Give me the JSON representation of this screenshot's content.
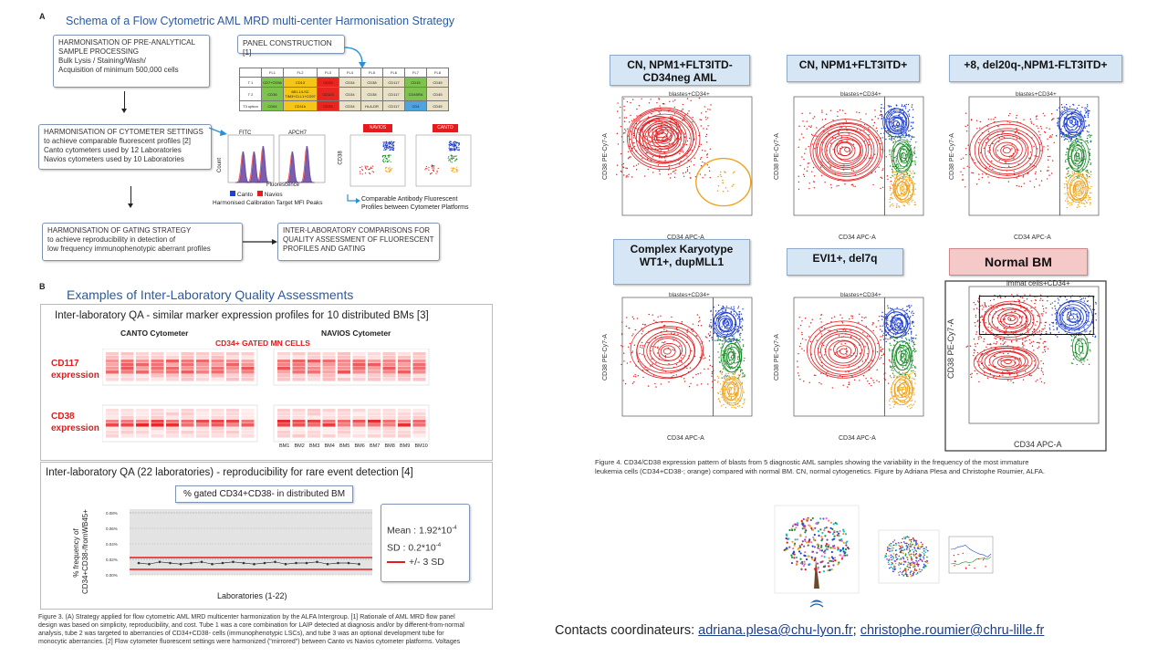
{
  "left": {
    "section_a_label": "A",
    "section_a_title": "Schema of a  Flow Cytometric AML MRD multi-center Harmonisation Strategy",
    "box1_lines": [
      "HARMONISATION OF PRE-ANALYTICAL",
      "SAMPLE  PROCESSING",
      "Bulk Lysis / Staining/Wash/",
      "Acquisition of minimum 500,000 cells"
    ],
    "panel_box": "PANEL CONSTRUCTION [1]",
    "table_header": [
      "",
      "FL1",
      "FL2",
      "FL3",
      "FL4",
      "FL5",
      "FL6",
      "FL7",
      "FL8"
    ],
    "table_rows": [
      [
        "T 1",
        "CD7+CD56",
        "CD13",
        "CD33",
        "CD34",
        "CD38",
        "CD117",
        "CD15",
        "CD45"
      ],
      [
        "T 2",
        "CD36",
        "6B1.1/LSC TIM3+CLL1+CD97",
        "CD123",
        "CD34",
        "CD38",
        "CD117",
        "CD45RA",
        "CD45"
      ],
      [
        "T3 option",
        "CD64",
        "CD11b",
        "CD33",
        "CD34",
        "HLA-DR",
        "CD117",
        "CD4",
        "CD45"
      ]
    ],
    "table_colors": [
      [
        "#fff",
        "#7fc34f",
        "#f5c518",
        "#e8251f",
        "#e8e1c8",
        "#e8e1c8",
        "#e8e1c8",
        "#7fc34f",
        "#e8e1c8"
      ],
      [
        "#fff",
        "#7fc34f",
        "#f5c518",
        "#e8251f",
        "#e8e1c8",
        "#e8e1c8",
        "#e8e1c8",
        "#7fc34f",
        "#e8e1c8"
      ],
      [
        "#fff",
        "#7fc34f",
        "#f5c518",
        "#e8251f",
        "#e8e1c8",
        "#e8e1c8",
        "#e8e1c8",
        "#4fa4e0",
        "#e8e1c8"
      ]
    ],
    "box2_lines": [
      "HARMONISATION OF CYTOMETER SETTINGS",
      "to achieve comparable fluorescent profiles [2]",
      "Canto cytometers used by 12 Laboratories",
      "Navios cytometers used by 10 Laboratories"
    ],
    "hist_labels": {
      "fitc": "FITC",
      "apch7": "APCH7",
      "count": "Count",
      "fluorescence": "Fluorescence",
      "legend_canto": "Canto",
      "legend_navios": "Navios",
      "calib": "Harmonised Calibration Target MFI Peaks",
      "navios_tag": "NAVIOS",
      "canto_tag": "CANTO",
      "cd38": "CD38",
      "cd34": "CD34"
    },
    "comparable_lines": [
      "Comparable  Antibody Fluorescent",
      "Profiles  between Cytometer Platforms"
    ],
    "box3_lines": [
      "HARMONISATION OF GATING STRATEGY",
      "to achieve reproducibility in detection of",
      "low frequency immunophenotypic aberrant profiles"
    ],
    "box4_lines": [
      "INTER-LABORATORY COMPARISONS FOR",
      "QUALITY ASSESSMENT  OF FLUORESCENT",
      "PROFILES AND GATING"
    ],
    "section_b_label": "B",
    "section_b_title": "Examples of Inter-Laboratory Quality Assessments",
    "qa1_title": "Inter-laboratory QA  - similar marker expression profiles for 10 distributed BMs [3]",
    "canto_cyt": "CANTO Cytometer",
    "navios_cyt": "NAVIOS  Cytometer",
    "gated": "CD34+ GATED MN CELLS",
    "cd117_lines": [
      "CD117",
      "expression"
    ],
    "cd38_lines": [
      "CD38",
      "expression"
    ],
    "bm_labels": [
      "BM1",
      "BM2",
      "BM3",
      "BM4",
      "BM5",
      "BM6",
      "BM7",
      "BM8",
      "BM9",
      "BM10"
    ],
    "qa2_title": "Inter-laboratory QA (22 laboratories) - reproducibility for rare event detection [4]",
    "pct_title": "%  gated CD34+CD38-  in distributed BM",
    "yaxis_lines": [
      "% frequency of",
      "CD34+CD38-/fromWB45+"
    ],
    "yticks": [
      "0.08%",
      "0.06%",
      "0.04%",
      "0.02%",
      "0.00%"
    ],
    "xlab": "Laboratories (1-22)",
    "mean_text": "Mean : 1.92*10",
    "mean_exp": "-4",
    "sd_text": "SD :   0.2*10",
    "sd_exp": "-4",
    "sd3_text": "+/-  3 SD",
    "fig3_lines": [
      "Figure 3.  (A) Strategy applied for flow cytometric AML MRD multicenter harmonization by the ALFA Intergroup. [1] Rationale of AML MRD flow panel",
      "design was based on simplicity, reproducibility, and cost. Tube 1 was a core combination for LAIP detected at diagnosis and/or by different-from-normal",
      "analysis, tube 2 was targeted to aberrancies of CD34+CD38- cells (immunophenotypic LSCs), and tube 3 was an optional development tube for",
      "monocytic aberrancies.  [2] Flow cytometer fluorescent settings were harmonized (\"mirrored\") between Canto vs Navios cytometer platforms. Voltages"
    ]
  },
  "right": {
    "titles": [
      "CN, NPM1+FLT3ITD-\nCD34neg  AML",
      "CN, NPM1+FLT3ITD+",
      "+8, del20q-,NPM1-FLT3ITD+",
      "Complex Karyotype\nWT1+, dupMLL1",
      "EVI1+, del7q",
      "Normal BM"
    ],
    "gate_top": "blastes+CD34+",
    "gate_normal": "immat cells+CD34+",
    "xaxis": "CD34 APC-A",
    "yaxis": "CD38 PE-Cy7-A",
    "fig4_lines": [
      "Figure 4.  CD34/CD38 expression pattern of blasts from 5 diagnostic AML samples showing the variability in the frequency of the most immature",
      "leukemia cells (CD34+CD38-; orange) compared with normal BM. CN, normal cytogenetics. Figure by Adriana Plesa and Christophe Roumier, ALFA."
    ],
    "contacts_label": "Contacts coordinateurs: ",
    "contact1": "adriana.plesa@chu-lyon.fr",
    "sep": "; ",
    "contact2": "christophe.roumier@chru-lille.fr"
  },
  "colors": {
    "red": "#e41a1c",
    "blue": "#1f3fd0",
    "green": "#1e8c2a",
    "orange": "#f0a21a",
    "title_bg": "#d6e6f5",
    "normal_bg": "#f6c9c9"
  }
}
